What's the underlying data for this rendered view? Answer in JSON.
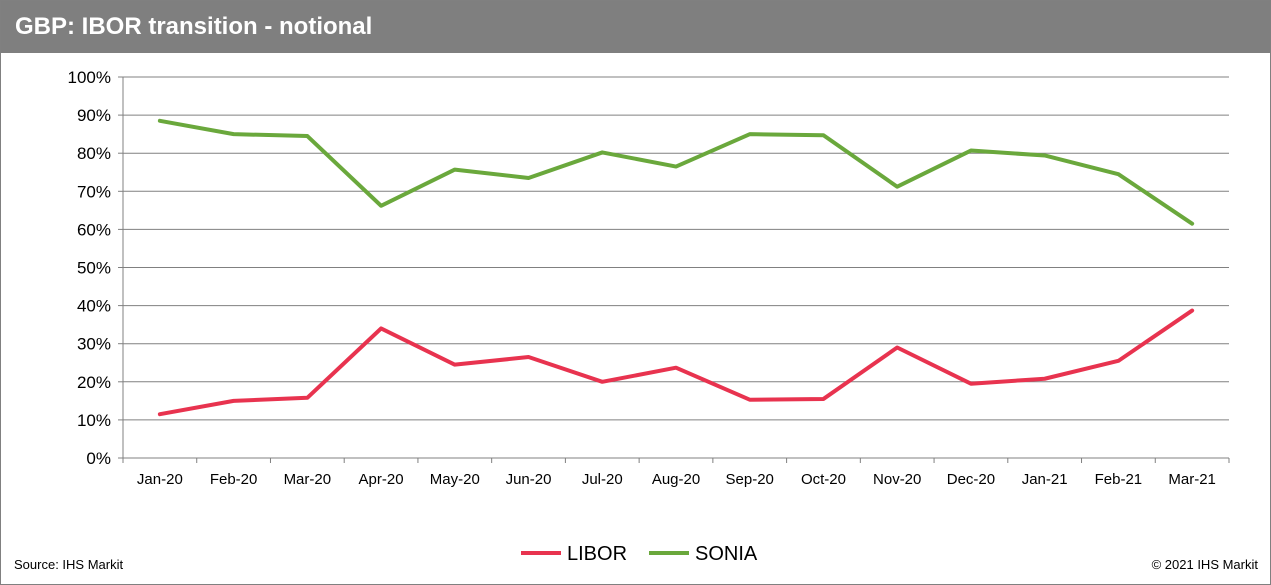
{
  "header": {
    "title": "GBP: IBOR transition - notional"
  },
  "footer": {
    "source": "Source: IHS Markit",
    "copyright": "© 2021 IHS Markit"
  },
  "colors": {
    "LIBOR": "#e8334f",
    "SONIA": "#6aa83c",
    "header_bg": "#7f7f7f",
    "grid": "#808080"
  },
  "chart_data": {
    "type": "line",
    "title": "GBP: IBOR transition - notional",
    "categories": [
      "Jan-20",
      "Feb-20",
      "Mar-20",
      "Apr-20",
      "May-20",
      "Jun-20",
      "Jul-20",
      "Aug-20",
      "Sep-20",
      "Oct-20",
      "Nov-20",
      "Dec-20",
      "Jan-21",
      "Feb-21",
      "Mar-21"
    ],
    "series": [
      {
        "name": "LIBOR",
        "values": [
          11.5,
          15,
          15.8,
          34,
          24.5,
          26.5,
          20,
          23.7,
          15.3,
          15.5,
          29,
          19.5,
          20.8,
          25.5,
          38.7
        ]
      },
      {
        "name": "SONIA",
        "values": [
          88.5,
          85,
          84.5,
          66.2,
          75.7,
          73.5,
          80.2,
          76.5,
          85,
          84.7,
          71.2,
          80.7,
          79.4,
          74.5,
          61.5
        ]
      }
    ],
    "ylim": [
      0,
      100
    ],
    "yticks": [
      0,
      10,
      20,
      30,
      40,
      50,
      60,
      70,
      80,
      90,
      100
    ],
    "ytick_labels": [
      "0%",
      "10%",
      "20%",
      "30%",
      "40%",
      "50%",
      "60%",
      "70%",
      "80%",
      "90%",
      "100%"
    ],
    "grid": true,
    "legend": "bottom-center"
  }
}
